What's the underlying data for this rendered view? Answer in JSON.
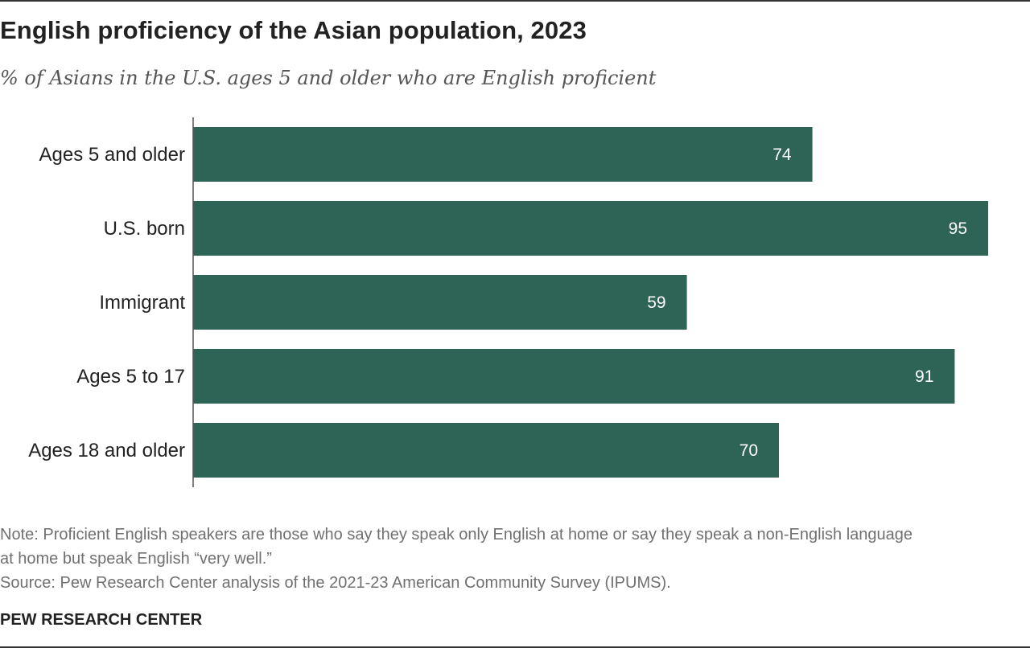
{
  "title": "English proficiency of the Asian population, 2023",
  "subtitle": "% of Asians in the U.S. ages 5 and older who are English proficient",
  "note_line1": "Note: Proficient English speakers are those who say they speak only English at home or say they speak a non-English language",
  "note_line2": "at home but speak English “very well.”",
  "source": "Source: Pew Research Center analysis of the 2021-23 American Community Survey (IPUMS).",
  "org": "PEW RESEARCH CENTER",
  "colors": {
    "bar": "#2e6456",
    "axis": "#555555"
  },
  "chart_data": {
    "type": "bar",
    "orientation": "horizontal",
    "categories": [
      "Ages 5 and older",
      "U.S. born",
      "Immigrant",
      "Ages 5 to 17",
      "Ages 18 and older"
    ],
    "values": [
      74,
      95,
      59,
      91,
      70
    ],
    "xlim": [
      0,
      100
    ],
    "grid": false,
    "legend": "none"
  }
}
